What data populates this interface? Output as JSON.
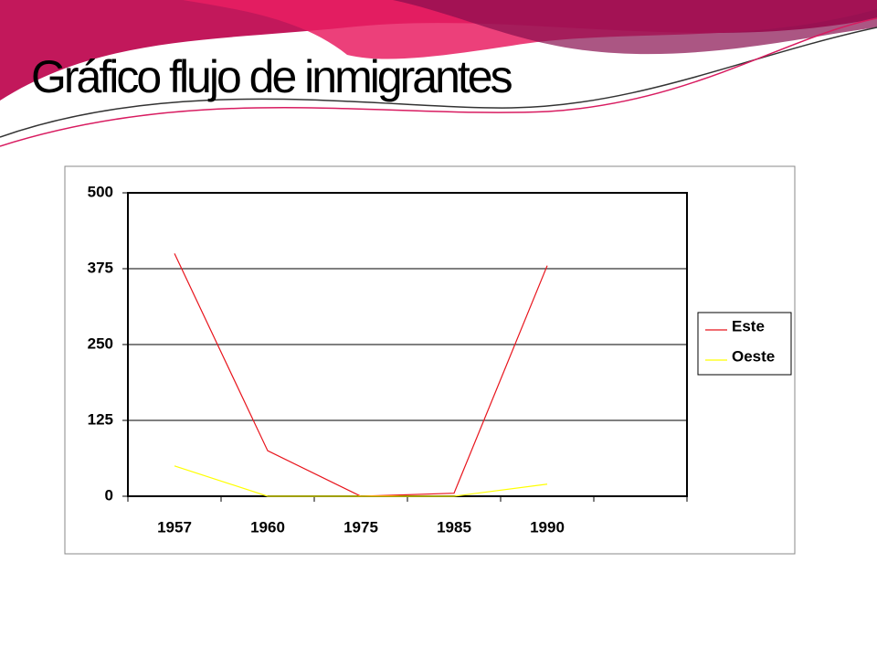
{
  "chart_data": {
    "type": "line",
    "title": "Gráfico flujo de inmigrantes",
    "categories": [
      "1957",
      "1960",
      "1975",
      "1985",
      "1990",
      null
    ],
    "series": [
      {
        "name": "Este",
        "color": "#e8141c",
        "values": [
          400,
          75,
          0,
          5,
          380,
          null
        ]
      },
      {
        "name": "Oeste",
        "color": "#ffff00",
        "values": [
          50,
          0,
          0,
          0,
          20,
          null
        ]
      }
    ],
    "ylim": [
      0,
      500
    ],
    "yticks": [
      0,
      125,
      250,
      375,
      500
    ],
    "grid": true,
    "legend": "right"
  }
}
